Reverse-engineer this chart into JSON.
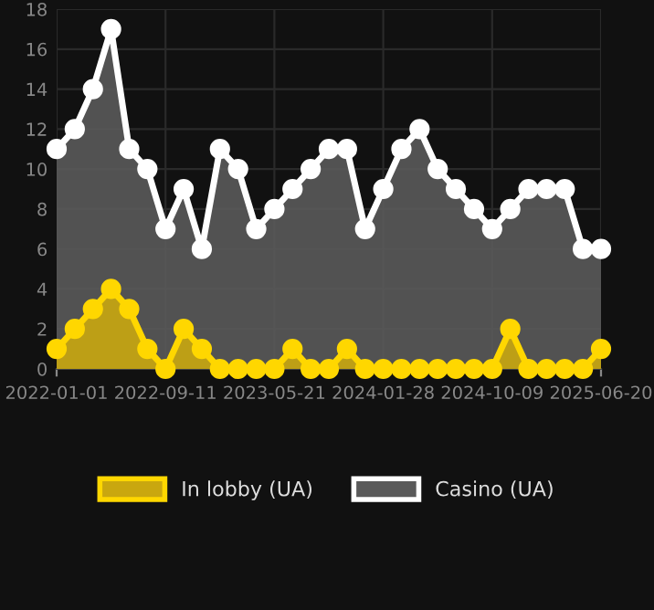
{
  "chart_data": {
    "type": "area",
    "categories": [
      "2022-01-01",
      null,
      null,
      null,
      null,
      null,
      "2022-09-11",
      null,
      null,
      null,
      null,
      null,
      "2023-05-21",
      null,
      null,
      null,
      null,
      null,
      "2024-01-28",
      null,
      null,
      null,
      null,
      null,
      "2024-10-09",
      null,
      null,
      null,
      null,
      null,
      "2025-06-20"
    ],
    "series": [
      {
        "name": "In lobby (UA)",
        "color": "#ffd700",
        "values": [
          1,
          2,
          3,
          4,
          3,
          1,
          0,
          2,
          1,
          0,
          0,
          0,
          0,
          1,
          0,
          0,
          1,
          0,
          0,
          0,
          0,
          0,
          0,
          0,
          0,
          2,
          0,
          0,
          0,
          0,
          1
        ]
      },
      {
        "name": "Casino (UA)",
        "color": "#ffffff",
        "values": [
          11,
          12,
          14,
          17,
          11,
          10,
          7,
          9,
          6,
          11,
          10,
          7,
          8,
          9,
          10,
          11,
          11,
          7,
          9,
          11,
          12,
          10,
          9,
          8,
          7,
          8,
          9,
          9,
          9,
          6,
          6
        ]
      }
    ],
    "ylim": [
      0,
      18
    ],
    "yticks": [
      0,
      2,
      4,
      6,
      8,
      10,
      12,
      14,
      16,
      18
    ],
    "grid": true,
    "legend": "bottom",
    "marker": "circle"
  }
}
